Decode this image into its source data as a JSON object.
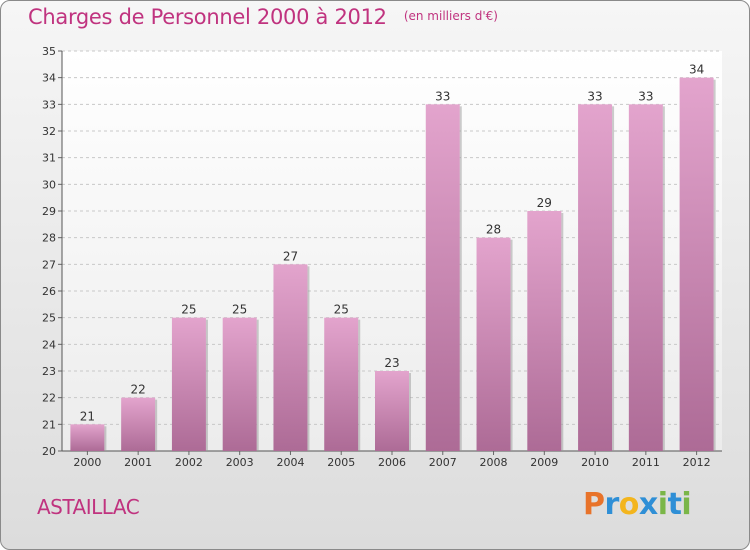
{
  "header": {
    "title": "Charges de Personnel 2000 à 2012",
    "subtitle": "(en milliers d'€)"
  },
  "footer": {
    "commune": "ASTAILLAC"
  },
  "brand": {
    "logo_letters": [
      "P",
      "r",
      "o",
      "x",
      "i",
      "t",
      "i"
    ],
    "logo_colors": [
      "#e8732a",
      "#2f8fd6",
      "#f3b51d",
      "#2f8fd6",
      "#7ab648",
      "#2f8fd6",
      "#7ab648"
    ]
  },
  "colors": {
    "bar_top": "#e3a4cd",
    "bar_bottom": "#ad6b96",
    "title": "#c0337f"
  },
  "chart_data": {
    "type": "bar",
    "categories": [
      "2000",
      "2001",
      "2002",
      "2003",
      "2004",
      "2005",
      "2006",
      "2007",
      "2008",
      "2009",
      "2010",
      "2011",
      "2012"
    ],
    "values": [
      21,
      22,
      25,
      25,
      27,
      25,
      23,
      33,
      28,
      29,
      33,
      33,
      34
    ],
    "ylim": [
      20,
      35
    ],
    "yticks": [
      "20",
      "21",
      "22",
      "23",
      "24",
      "25",
      "26",
      "27",
      "28",
      "29",
      "30",
      "31",
      "32",
      "33",
      "34",
      "35"
    ],
    "grid": true,
    "data_labels": true
  }
}
